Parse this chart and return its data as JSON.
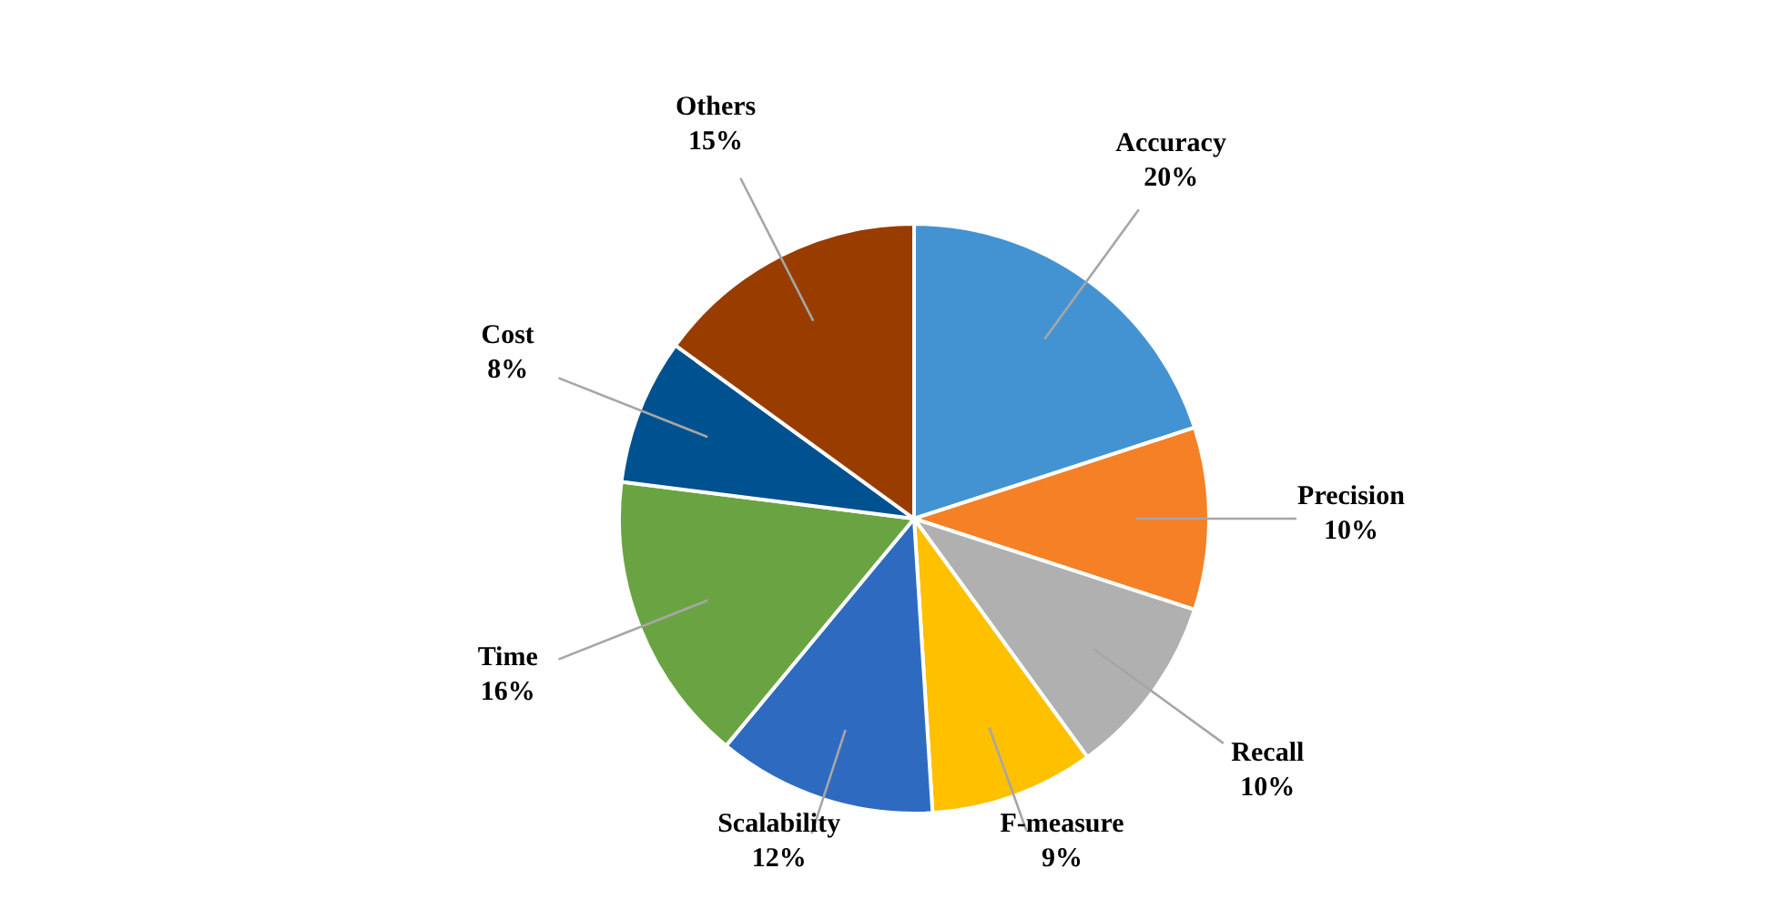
{
  "chart_data": {
    "type": "pie",
    "categories": [
      "Accuracy",
      "Precision",
      "Recall",
      "F-measure",
      "Scalability",
      "Time",
      "Cost",
      "Others"
    ],
    "values": [
      20,
      10,
      10,
      9,
      12,
      16,
      8,
      15
    ],
    "value_labels": [
      "20%",
      "10%",
      "10%",
      "9%",
      "12%",
      "16%",
      "8%",
      "15%"
    ],
    "colors": [
      "#4393d3",
      "#f58025",
      "#b0b0b0",
      "#ffc000",
      "#2e6bc0",
      "#6aa442",
      "#00518f",
      "#993c00"
    ]
  }
}
